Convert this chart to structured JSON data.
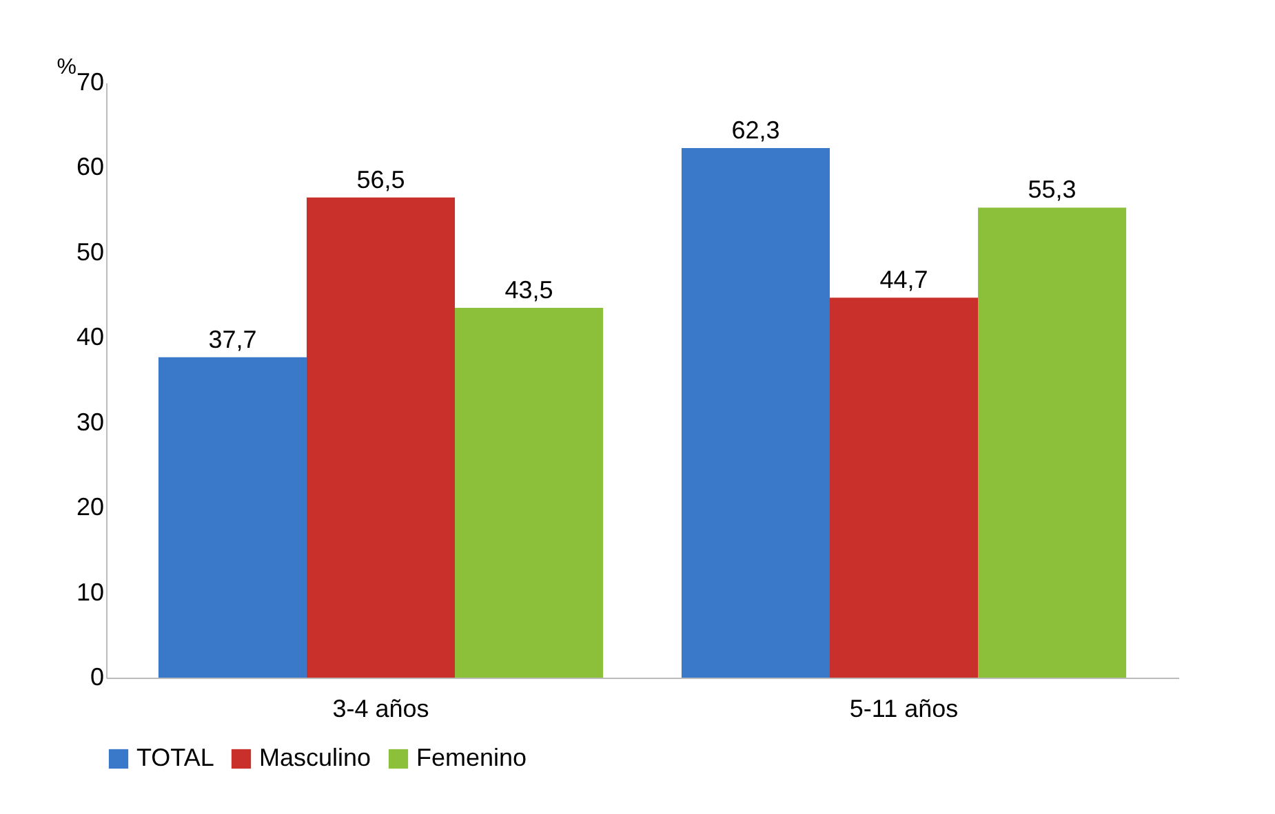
{
  "chart_data": {
    "type": "bar",
    "categories": [
      "3-4 años",
      "5-11 años"
    ],
    "ylabel": "%",
    "ylim": [
      0,
      70
    ],
    "yticks": [
      0,
      10,
      20,
      30,
      40,
      50,
      60,
      70
    ],
    "grid": false,
    "legend": "bottom",
    "series": [
      {
        "name": "TOTAL",
        "color": "#3a78c9",
        "values": [
          37.7,
          62.3
        ],
        "value_labels": [
          "37,7",
          "62,3"
        ]
      },
      {
        "name": "Masculino",
        "color": "#c9302c",
        "values": [
          56.5,
          44.7
        ],
        "value_labels": [
          "56,5",
          "44,7"
        ]
      },
      {
        "name": "Femenino",
        "color": "#8cbf3a",
        "values": [
          43.5,
          55.3
        ],
        "value_labels": [
          "43,5",
          "55,3"
        ]
      }
    ]
  }
}
